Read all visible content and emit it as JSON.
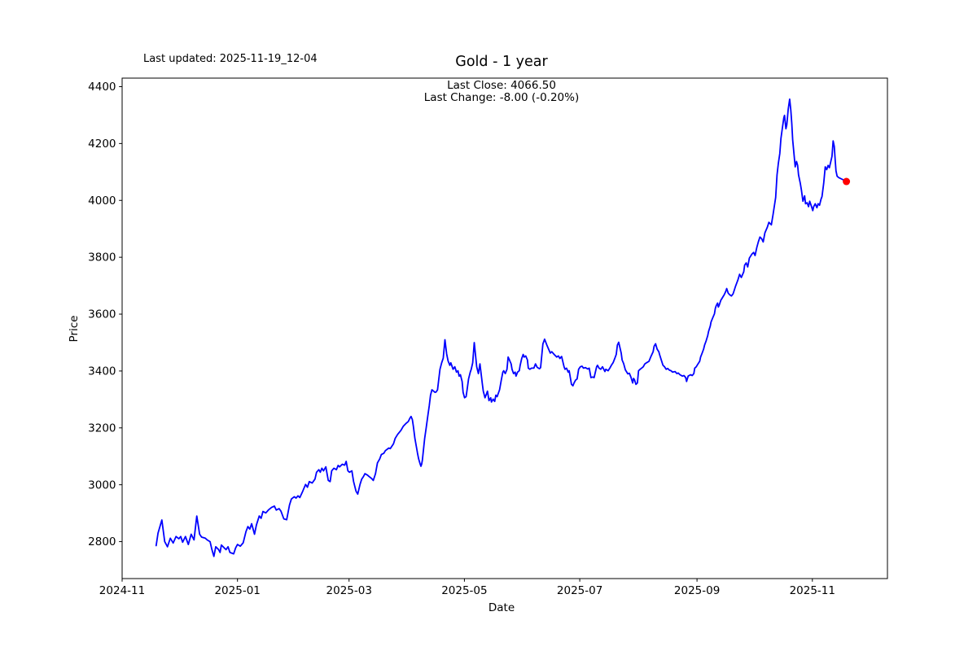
{
  "header": {
    "last_updated": "Last updated: 2025-11-19_12-04",
    "title": "Gold - 1 year",
    "annotation_line1": "Last Close: 4066.50",
    "annotation_line2": "Last Change: -8.00 (-0.20%)"
  },
  "chart_data": {
    "type": "line",
    "title": "Gold - 1 year",
    "xlabel": "Date",
    "ylabel": "Price",
    "last_close": 4066.5,
    "last_change_text": "-8.00 (-0.20%)",
    "line_color": "#0000ff",
    "marker_color": "#ff0000",
    "background_color": "#ffffff",
    "grid": false,
    "legend": "none",
    "x_unit": "days since 2024-11-19",
    "xlim": [
      -18,
      386.7
    ],
    "ylim": [
      2670,
      4430
    ],
    "y_ticks": [
      2800,
      3000,
      3200,
      3400,
      3600,
      3800,
      4000,
      4200,
      4400
    ],
    "x_ticks": [
      {
        "label": "2024-11",
        "day": -18
      },
      {
        "label": "2025-01",
        "day": 43
      },
      {
        "label": "2025-03",
        "day": 102
      },
      {
        "label": "2025-05",
        "day": 163
      },
      {
        "label": "2025-07",
        "day": 224
      },
      {
        "label": "2025-09",
        "day": 286
      },
      {
        "label": "2025-11",
        "day": 347
      }
    ],
    "points": [
      [
        0,
        2786
      ],
      [
        1,
        2830
      ],
      [
        3,
        2876
      ],
      [
        4.5,
        2800
      ],
      [
        6,
        2782
      ],
      [
        7.5,
        2812
      ],
      [
        9,
        2795
      ],
      [
        10.5,
        2818
      ],
      [
        12,
        2810
      ],
      [
        13,
        2818
      ],
      [
        14,
        2798
      ],
      [
        15.5,
        2818
      ],
      [
        17,
        2790
      ],
      [
        18.5,
        2826
      ],
      [
        20,
        2806
      ],
      [
        21.5,
        2890
      ],
      [
        23,
        2826
      ],
      [
        24,
        2816
      ],
      [
        26,
        2812
      ],
      [
        27,
        2806
      ],
      [
        28.5,
        2800
      ],
      [
        29.5,
        2772
      ],
      [
        30.5,
        2748
      ],
      [
        31.5,
        2782
      ],
      [
        33,
        2772
      ],
      [
        33.8,
        2762
      ],
      [
        34.5,
        2788
      ],
      [
        36,
        2778
      ],
      [
        37,
        2772
      ],
      [
        38,
        2782
      ],
      [
        39,
        2762
      ],
      [
        41,
        2757
      ],
      [
        42,
        2778
      ],
      [
        43,
        2790
      ],
      [
        44.5,
        2784
      ],
      [
        46,
        2796
      ],
      [
        47.5,
        2835
      ],
      [
        48.5,
        2853
      ],
      [
        49.5,
        2844
      ],
      [
        50.5,
        2863
      ],
      [
        52,
        2826
      ],
      [
        53,
        2858
      ],
      [
        54.5,
        2890
      ],
      [
        55.5,
        2882
      ],
      [
        56.5,
        2906
      ],
      [
        58,
        2901
      ],
      [
        59.5,
        2912
      ],
      [
        61,
        2920
      ],
      [
        62.5,
        2925
      ],
      [
        63.5,
        2911
      ],
      [
        65,
        2916
      ],
      [
        66,
        2907
      ],
      [
        67.5,
        2880
      ],
      [
        69,
        2877
      ],
      [
        70.5,
        2929
      ],
      [
        71.5,
        2950
      ],
      [
        73,
        2958
      ],
      [
        74,
        2953
      ],
      [
        75,
        2961
      ],
      [
        76,
        2955
      ],
      [
        77.5,
        2977
      ],
      [
        79,
        3001
      ],
      [
        80,
        2991
      ],
      [
        81,
        3011
      ],
      [
        82.5,
        3006
      ],
      [
        84,
        3020
      ],
      [
        84.8,
        3044
      ],
      [
        86,
        3053
      ],
      [
        86.8,
        3044
      ],
      [
        87.6,
        3058
      ],
      [
        88.5,
        3049
      ],
      [
        89.7,
        3063
      ],
      [
        91,
        3015
      ],
      [
        92,
        3011
      ],
      [
        92.8,
        3049
      ],
      [
        94,
        3058
      ],
      [
        95.3,
        3053
      ],
      [
        96.2,
        3068
      ],
      [
        97,
        3063
      ],
      [
        98.4,
        3072
      ],
      [
        99.7,
        3069
      ],
      [
        100.5,
        3082
      ],
      [
        101.4,
        3049
      ],
      [
        102.2,
        3044
      ],
      [
        103.5,
        3049
      ],
      [
        104.4,
        3011
      ],
      [
        105.7,
        2977
      ],
      [
        106.6,
        2967
      ],
      [
        107.8,
        3001
      ],
      [
        108.7,
        3020
      ],
      [
        109.6,
        3029
      ],
      [
        110.4,
        3039
      ],
      [
        111.7,
        3034
      ],
      [
        112.6,
        3029
      ],
      [
        113.9,
        3022
      ],
      [
        114.8,
        3015
      ],
      [
        116,
        3039
      ],
      [
        117,
        3077
      ],
      [
        118.2,
        3091
      ],
      [
        119.1,
        3106
      ],
      [
        120.4,
        3111
      ],
      [
        121.2,
        3120
      ],
      [
        123,
        3129
      ],
      [
        123.8,
        3127
      ],
      [
        125.5,
        3144
      ],
      [
        126.4,
        3163
      ],
      [
        127.7,
        3177
      ],
      [
        129.4,
        3191
      ],
      [
        130.7,
        3206
      ],
      [
        132,
        3215
      ],
      [
        133.3,
        3222
      ],
      [
        134.2,
        3234
      ],
      [
        134.8,
        3240
      ],
      [
        135.5,
        3229
      ],
      [
        136,
        3206
      ],
      [
        136.8,
        3163
      ],
      [
        137.6,
        3134
      ],
      [
        138.2,
        3111
      ],
      [
        138.8,
        3091
      ],
      [
        139.4,
        3077
      ],
      [
        140,
        3065
      ],
      [
        140.4,
        3072
      ],
      [
        140.8,
        3087
      ],
      [
        141.4,
        3125
      ],
      [
        142,
        3163
      ],
      [
        142.8,
        3201
      ],
      [
        143.6,
        3239
      ],
      [
        144.4,
        3277
      ],
      [
        145.1,
        3315
      ],
      [
        145.8,
        3334
      ],
      [
        146.7,
        3329
      ],
      [
        147.4,
        3325
      ],
      [
        148,
        3326
      ],
      [
        148.8,
        3334
      ],
      [
        149.3,
        3363
      ],
      [
        150.1,
        3406
      ],
      [
        151,
        3429
      ],
      [
        151.8,
        3445
      ],
      [
        152.7,
        3510
      ],
      [
        153.6,
        3460
      ],
      [
        154.4,
        3435
      ],
      [
        155.3,
        3420
      ],
      [
        155.8,
        3429
      ],
      [
        157,
        3406
      ],
      [
        157.9,
        3415
      ],
      [
        158.8,
        3396
      ],
      [
        159.6,
        3401
      ],
      [
        160.2,
        3382
      ],
      [
        160.9,
        3387
      ],
      [
        161.8,
        3363
      ],
      [
        162.3,
        3325
      ],
      [
        163.1,
        3306
      ],
      [
        163.9,
        3310
      ],
      [
        164.4,
        3334
      ],
      [
        165.2,
        3372
      ],
      [
        166.1,
        3396
      ],
      [
        166.6,
        3406
      ],
      [
        167.4,
        3429
      ],
      [
        168.2,
        3500
      ],
      [
        169.5,
        3415
      ],
      [
        170.4,
        3391
      ],
      [
        171.2,
        3425
      ],
      [
        172.5,
        3353
      ],
      [
        173,
        3329
      ],
      [
        173.9,
        3306
      ],
      [
        174.7,
        3320
      ],
      [
        175.2,
        3329
      ],
      [
        176,
        3296
      ],
      [
        176.9,
        3306
      ],
      [
        177.3,
        3291
      ],
      [
        178.2,
        3301
      ],
      [
        179,
        3293
      ],
      [
        179.6,
        3315
      ],
      [
        180.3,
        3310
      ],
      [
        181.6,
        3334
      ],
      [
        182.5,
        3368
      ],
      [
        183.3,
        3396
      ],
      [
        183.8,
        3401
      ],
      [
        184.6,
        3391
      ],
      [
        185.5,
        3406
      ],
      [
        186.1,
        3449
      ],
      [
        186.8,
        3439
      ],
      [
        187.7,
        3425
      ],
      [
        188.2,
        3406
      ],
      [
        189,
        3391
      ],
      [
        189.8,
        3396
      ],
      [
        190.3,
        3382
      ],
      [
        191.1,
        3396
      ],
      [
        192,
        3401
      ],
      [
        192.5,
        3420
      ],
      [
        193.3,
        3444
      ],
      [
        194.1,
        3458
      ],
      [
        194.6,
        3449
      ],
      [
        195.4,
        3453
      ],
      [
        196.3,
        3439
      ],
      [
        196.8,
        3410
      ],
      [
        197.6,
        3406
      ],
      [
        198.5,
        3410
      ],
      [
        199.7,
        3410
      ],
      [
        200.6,
        3425
      ],
      [
        201.5,
        3413
      ],
      [
        202.7,
        3408
      ],
      [
        203.3,
        3412
      ],
      [
        204.5,
        3495
      ],
      [
        205.4,
        3512
      ],
      [
        206.6,
        3491
      ],
      [
        207.5,
        3477
      ],
      [
        208.4,
        3463
      ],
      [
        209.2,
        3468
      ],
      [
        210.5,
        3458
      ],
      [
        211.8,
        3449
      ],
      [
        212.7,
        3453
      ],
      [
        213.5,
        3444
      ],
      [
        214.4,
        3451
      ],
      [
        215.7,
        3415
      ],
      [
        216.2,
        3406
      ],
      [
        217,
        3410
      ],
      [
        217.9,
        3396
      ],
      [
        218.4,
        3401
      ],
      [
        219.6,
        3353
      ],
      [
        220.4,
        3348
      ],
      [
        221,
        3358
      ],
      [
        221.8,
        3368
      ],
      [
        222.6,
        3372
      ],
      [
        223.4,
        3406
      ],
      [
        224.3,
        3415
      ],
      [
        225.2,
        3417
      ],
      [
        226,
        3410
      ],
      [
        227,
        3412
      ],
      [
        228.2,
        3407
      ],
      [
        229,
        3410
      ],
      [
        229.9,
        3377
      ],
      [
        230.8,
        3379
      ],
      [
        231.6,
        3377
      ],
      [
        232.9,
        3415
      ],
      [
        233.4,
        3420
      ],
      [
        234.2,
        3410
      ],
      [
        235.1,
        3406
      ],
      [
        236,
        3415
      ],
      [
        237.3,
        3398
      ],
      [
        237.8,
        3406
      ],
      [
        239,
        3401
      ],
      [
        239.9,
        3410
      ],
      [
        240.7,
        3420
      ],
      [
        241.6,
        3429
      ],
      [
        242.5,
        3444
      ],
      [
        243.3,
        3458
      ],
      [
        243.9,
        3491
      ],
      [
        244.6,
        3501
      ],
      [
        245.9,
        3463
      ],
      [
        246.4,
        3439
      ],
      [
        247.2,
        3426
      ],
      [
        248.1,
        3404
      ],
      [
        249.4,
        3390
      ],
      [
        250.2,
        3392
      ],
      [
        251.1,
        3378
      ],
      [
        252,
        3358
      ],
      [
        252.4,
        3374
      ],
      [
        252.9,
        3370
      ],
      [
        253.7,
        3353
      ],
      [
        254.5,
        3358
      ],
      [
        255.1,
        3401
      ],
      [
        255.9,
        3406
      ],
      [
        256.7,
        3410
      ],
      [
        257.6,
        3415
      ],
      [
        258.4,
        3425
      ],
      [
        259.3,
        3429
      ],
      [
        260.6,
        3434
      ],
      [
        261.5,
        3449
      ],
      [
        262.8,
        3468
      ],
      [
        263.3,
        3487
      ],
      [
        264.1,
        3496
      ],
      [
        264.9,
        3477
      ],
      [
        265.8,
        3468
      ],
      [
        266.2,
        3458
      ],
      [
        267.1,
        3439
      ],
      [
        268,
        3420
      ],
      [
        268.8,
        3415
      ],
      [
        269.7,
        3406
      ],
      [
        270.5,
        3409
      ],
      [
        271.4,
        3403
      ],
      [
        272.3,
        3401
      ],
      [
        273.1,
        3396
      ],
      [
        274.4,
        3398
      ],
      [
        275.3,
        3391
      ],
      [
        276.1,
        3393
      ],
      [
        277,
        3387
      ],
      [
        278.3,
        3382
      ],
      [
        279.1,
        3384
      ],
      [
        280,
        3377
      ],
      [
        280.5,
        3363
      ],
      [
        281.3,
        3382
      ],
      [
        282.6,
        3387
      ],
      [
        283.5,
        3384
      ],
      [
        284.3,
        3391
      ],
      [
        284.8,
        3410
      ],
      [
        285.6,
        3415
      ],
      [
        286.5,
        3425
      ],
      [
        287.4,
        3434
      ],
      [
        287.9,
        3449
      ],
      [
        288.7,
        3463
      ],
      [
        289.5,
        3477
      ],
      [
        290,
        3491
      ],
      [
        290.8,
        3506
      ],
      [
        291.7,
        3525
      ],
      [
        292.1,
        3539
      ],
      [
        293,
        3558
      ],
      [
        293.4,
        3572
      ],
      [
        294.3,
        3587
      ],
      [
        295.2,
        3601
      ],
      [
        295.7,
        3620
      ],
      [
        296.1,
        3629
      ],
      [
        296.9,
        3639
      ],
      [
        297.3,
        3625
      ],
      [
        297.7,
        3631
      ],
      [
        298.6,
        3649
      ],
      [
        299,
        3653
      ],
      [
        299.9,
        3663
      ],
      [
        300.3,
        3667
      ],
      [
        301.2,
        3680
      ],
      [
        301.7,
        3690
      ],
      [
        302.5,
        3674
      ],
      [
        303.3,
        3668
      ],
      [
        304.2,
        3664
      ],
      [
        305.1,
        3672
      ],
      [
        306.3,
        3697
      ],
      [
        307.6,
        3720
      ],
      [
        308.5,
        3740
      ],
      [
        309.4,
        3729
      ],
      [
        310.7,
        3749
      ],
      [
        311.2,
        3772
      ],
      [
        312,
        3780
      ],
      [
        312.8,
        3766
      ],
      [
        313.7,
        3797
      ],
      [
        315,
        3811
      ],
      [
        315.9,
        3817
      ],
      [
        316.7,
        3806
      ],
      [
        317.6,
        3834
      ],
      [
        318.4,
        3854
      ],
      [
        319.3,
        3871
      ],
      [
        320.2,
        3865
      ],
      [
        321,
        3854
      ],
      [
        321.9,
        3886
      ],
      [
        323.2,
        3906
      ],
      [
        324,
        3923
      ],
      [
        325.3,
        3914
      ],
      [
        326.2,
        3950
      ],
      [
        326.9,
        3980
      ],
      [
        327.6,
        4010
      ],
      [
        328.3,
        4090
      ],
      [
        329,
        4130
      ],
      [
        329.8,
        4165
      ],
      [
        330.4,
        4218
      ],
      [
        331,
        4247
      ],
      [
        331.9,
        4290
      ],
      [
        332.3,
        4299
      ],
      [
        333,
        4252
      ],
      [
        333.5,
        4266
      ],
      [
        334.2,
        4320
      ],
      [
        335,
        4356
      ],
      [
        335.6,
        4318
      ],
      [
        336.1,
        4271
      ],
      [
        336.6,
        4213
      ],
      [
        337.3,
        4161
      ],
      [
        337.9,
        4118
      ],
      [
        338.6,
        4137
      ],
      [
        339.2,
        4123
      ],
      [
        339.7,
        4090
      ],
      [
        340.6,
        4061
      ],
      [
        341.2,
        4037
      ],
      [
        342,
        3997
      ],
      [
        342.9,
        4016
      ],
      [
        343.4,
        3988
      ],
      [
        344.2,
        3992
      ],
      [
        345,
        3978
      ],
      [
        345.6,
        3997
      ],
      [
        346.3,
        3983
      ],
      [
        347.2,
        3964
      ],
      [
        347.7,
        3978
      ],
      [
        348.5,
        3988
      ],
      [
        349.4,
        3974
      ],
      [
        350,
        3988
      ],
      [
        350.8,
        3983
      ],
      [
        351.6,
        4005
      ],
      [
        352.1,
        4013
      ],
      [
        353,
        4060
      ],
      [
        353.8,
        4118
      ],
      [
        354.6,
        4108
      ],
      [
        355.3,
        4123
      ],
      [
        356,
        4115
      ],
      [
        356.7,
        4135
      ],
      [
        357.4,
        4155
      ],
      [
        358,
        4209
      ],
      [
        358.6,
        4190
      ],
      [
        359,
        4147
      ],
      [
        359.5,
        4104
      ],
      [
        360.1,
        4085
      ],
      [
        361,
        4080
      ],
      [
        362.5,
        4075
      ],
      [
        364,
        4070
      ],
      [
        365,
        4066.5
      ]
    ]
  }
}
